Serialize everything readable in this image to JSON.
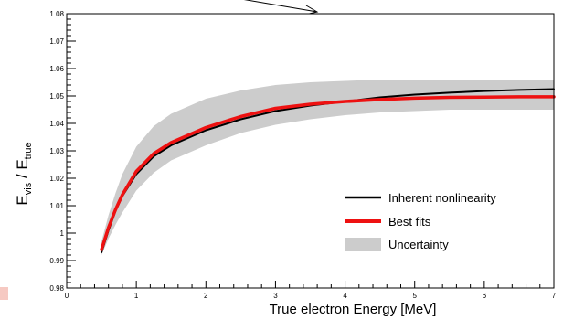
{
  "chart_data": {
    "type": "line",
    "xlabel": "True electron Energy [MeV]",
    "ylabel_main": "E",
    "ylabel_sub1": "vis",
    "ylabel_sep": " / E",
    "ylabel_sub2": "true",
    "xlim": [
      0,
      7
    ],
    "ylim": [
      0.98,
      1.08
    ],
    "x_ticks": [
      "0",
      "1",
      "2",
      "3",
      "4",
      "5",
      "6",
      "7"
    ],
    "y_ticks": [
      "0.98",
      "0.99",
      "1",
      "1.01",
      "1.02",
      "1.03",
      "1.04",
      "1.05",
      "1.06",
      "1.07",
      "1.08"
    ],
    "legend_position": "bottom-right",
    "series": [
      {
        "name": "Inherent nonlinearity",
        "color": "#000000",
        "x": [
          0.5,
          0.6,
          0.7,
          0.8,
          1.0,
          1.25,
          1.5,
          2.0,
          2.5,
          3.0,
          3.5,
          4.0,
          4.5,
          5.0,
          5.5,
          6.0,
          6.5,
          7.0
        ],
        "y": [
          0.993,
          1.001,
          1.008,
          1.0135,
          1.0215,
          1.028,
          1.032,
          1.0375,
          1.0415,
          1.0445,
          1.0465,
          1.048,
          1.0495,
          1.0505,
          1.0512,
          1.0518,
          1.0522,
          1.0525
        ]
      },
      {
        "name": "Best fits",
        "color": "#ee1111",
        "x": [
          0.5,
          0.6,
          0.7,
          0.8,
          1.0,
          1.25,
          1.5,
          2.0,
          2.5,
          3.0,
          3.5,
          4.0,
          4.5,
          5.0,
          5.5,
          6.0,
          6.5,
          7.0
        ],
        "y": [
          0.994,
          1.002,
          1.0085,
          1.014,
          1.0225,
          1.029,
          1.033,
          1.0385,
          1.0425,
          1.0455,
          1.047,
          1.048,
          1.0487,
          1.0492,
          1.0495,
          1.0496,
          1.0497,
          1.0497
        ]
      }
    ],
    "band": {
      "name": "Uncertainty",
      "color": "#cccccc",
      "x": [
        0.5,
        0.6,
        0.7,
        0.8,
        1.0,
        1.25,
        1.5,
        2.0,
        2.5,
        3.0,
        3.5,
        4.0,
        4.5,
        5.0,
        5.5,
        6.0,
        6.5,
        7.0
      ],
      "lower": [
        0.992,
        0.998,
        1.003,
        1.0075,
        1.0155,
        1.022,
        1.0265,
        1.032,
        1.0365,
        1.0395,
        1.0415,
        1.043,
        1.044,
        1.0445,
        1.045,
        1.045,
        1.045,
        1.045
      ],
      "upper": [
        0.997,
        1.0065,
        1.0145,
        1.0215,
        1.0315,
        1.039,
        1.0435,
        1.049,
        1.052,
        1.054,
        1.055,
        1.0555,
        1.056,
        1.056,
        1.056,
        1.056,
        1.056,
        1.056
      ]
    }
  }
}
